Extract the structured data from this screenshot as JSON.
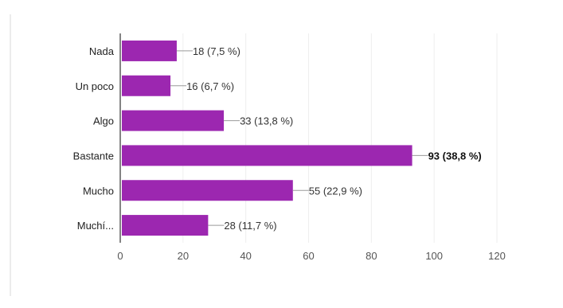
{
  "chart_data": {
    "type": "bar",
    "orientation": "horizontal",
    "categories": [
      "Nada",
      "Un poco",
      "Algo",
      "Bastante",
      "Mucho",
      "Muchí..."
    ],
    "values": [
      18,
      16,
      33,
      93,
      55,
      28
    ],
    "data_labels": [
      "18 (7,5 %)",
      "16 (6,7 %)",
      "33 (13,8 %)",
      "93 (38,8 %)",
      "55 (22,9 %)",
      "28 (11,7 %)"
    ],
    "highlight_index": 3,
    "xlim": [
      0,
      120
    ],
    "x_ticks": [
      "0",
      "20",
      "40",
      "60",
      "80",
      "100",
      "120"
    ],
    "title": "",
    "xlabel": "",
    "ylabel": "",
    "grid": true,
    "bar_color": "#9c27b0"
  }
}
